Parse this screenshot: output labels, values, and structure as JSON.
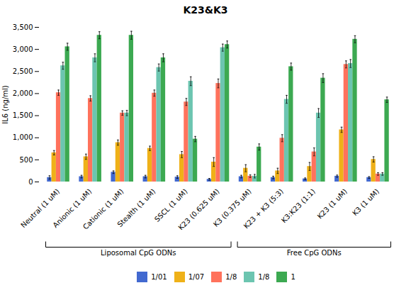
{
  "chart_data": {
    "type": "bar",
    "title": "K23&K3",
    "ylabel": "IL6 (ng/ml)",
    "ylim": [
      0,
      3500
    ],
    "yticks": [
      0,
      500,
      1000,
      1500,
      2000,
      2500,
      3000,
      3500
    ],
    "grid": false,
    "legend": "bottom",
    "categories": [
      "Neutral (1 uM)",
      "Anionic (1 uM)",
      "Cationic (1 uM)",
      "Stealth (1 uM)",
      "SSCL (1 uM)",
      "K23 (0.625 uM)",
      "K3 (0.375 uM)",
      "K23 + K3 (5:3)",
      "K3:K23 (1:1)",
      "K23 (1 uM)",
      "K3 (1 uM)"
    ],
    "series": [
      {
        "name": "1/01",
        "values": [
          100,
          120,
          220,
          120,
          110,
          60,
          120,
          100,
          70,
          130,
          100
        ],
        "errors": [
          40,
          30,
          30,
          30,
          30,
          20,
          30,
          30,
          20,
          25,
          20
        ]
      },
      {
        "name": "1/07",
        "values": [
          660,
          570,
          890,
          760,
          620,
          450,
          310,
          250,
          350,
          1180,
          510
        ],
        "errors": [
          50,
          60,
          60,
          50,
          70,
          100,
          80,
          60,
          90,
          60,
          60
        ]
      },
      {
        "name": "1/8",
        "values": [
          2020,
          1890,
          1560,
          2010,
          1810,
          2230,
          130,
          990,
          680,
          2660,
          180
        ],
        "errors": [
          60,
          60,
          50,
          70,
          80,
          100,
          30,
          80,
          90,
          80,
          30
        ]
      },
      {
        "name": "1/8 ",
        "values": [
          2630,
          2810,
          1560,
          2590,
          2280,
          3040,
          130,
          1870,
          1560,
          2680,
          180
        ],
        "errors": [
          80,
          90,
          60,
          80,
          100,
          80,
          40,
          90,
          100,
          90,
          30
        ]
      },
      {
        "name": "1",
        "values": [
          3060,
          3320,
          3320,
          2810,
          970,
          3110,
          790,
          2610,
          2350,
          3230,
          1860
        ],
        "errors": [
          80,
          80,
          90,
          90,
          60,
          80,
          70,
          80,
          100,
          80,
          60
        ]
      }
    ],
    "annotations": [
      {
        "text": "Liposomal CpG ODNs",
        "categories": [
          "Neutral (1 uM)",
          "Anionic (1 uM)",
          "Cationic (1 uM)",
          "Stealth (1 uM)",
          "SSCL (1 uM)",
          "K23 (0.625 uM)"
        ]
      },
      {
        "text": "Free CpG ODNs",
        "categories": [
          "K3 (0.375 uM)",
          "K23 + K3 (5:3)",
          "K3:K23 (1:1)",
          "K23 (1 uM)",
          "K3 (1 uM)"
        ]
      }
    ]
  }
}
